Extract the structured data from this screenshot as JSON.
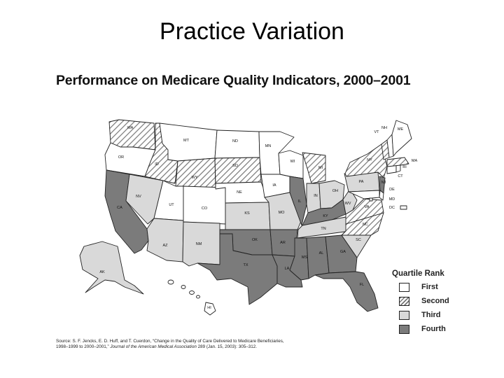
{
  "slide": {
    "title": "Practice Variation"
  },
  "map": {
    "title": "Performance on Medicare Quality Indicators, 2000–2001",
    "colors": {
      "first": "#ffffff",
      "second": "hatched",
      "third": "#d9d9d9",
      "fourth": "#7b7b7b"
    },
    "states": [
      {
        "abbr": "WA",
        "quartile": "second"
      },
      {
        "abbr": "OR",
        "quartile": "first"
      },
      {
        "abbr": "CA",
        "quartile": "fourth"
      },
      {
        "abbr": "ID",
        "quartile": "second"
      },
      {
        "abbr": "NV",
        "quartile": "third"
      },
      {
        "abbr": "MT",
        "quartile": "first"
      },
      {
        "abbr": "WY",
        "quartile": "second"
      },
      {
        "abbr": "UT",
        "quartile": "first"
      },
      {
        "abbr": "AZ",
        "quartile": "third"
      },
      {
        "abbr": "CO",
        "quartile": "first"
      },
      {
        "abbr": "NM",
        "quartile": "third"
      },
      {
        "abbr": "ND",
        "quartile": "first"
      },
      {
        "abbr": "SD",
        "quartile": "second"
      },
      {
        "abbr": "NE",
        "quartile": "first"
      },
      {
        "abbr": "KS",
        "quartile": "third"
      },
      {
        "abbr": "OK",
        "quartile": "fourth"
      },
      {
        "abbr": "TX",
        "quartile": "fourth"
      },
      {
        "abbr": "MN",
        "quartile": "first"
      },
      {
        "abbr": "IA",
        "quartile": "first"
      },
      {
        "abbr": "MO",
        "quartile": "third"
      },
      {
        "abbr": "AR",
        "quartile": "fourth"
      },
      {
        "abbr": "LA",
        "quartile": "fourth"
      },
      {
        "abbr": "WI",
        "quartile": "first"
      },
      {
        "abbr": "IL",
        "quartile": "fourth"
      },
      {
        "abbr": "MI",
        "quartile": "second"
      },
      {
        "abbr": "IN",
        "quartile": "third"
      },
      {
        "abbr": "OH",
        "quartile": "third"
      },
      {
        "abbr": "KY",
        "quartile": "fourth"
      },
      {
        "abbr": "TN",
        "quartile": "third"
      },
      {
        "abbr": "MS",
        "quartile": "fourth"
      },
      {
        "abbr": "AL",
        "quartile": "fourth"
      },
      {
        "abbr": "GA",
        "quartile": "fourth"
      },
      {
        "abbr": "FL",
        "quartile": "fourth"
      },
      {
        "abbr": "SC",
        "quartile": "third"
      },
      {
        "abbr": "NC",
        "quartile": "second"
      },
      {
        "abbr": "VA",
        "quartile": "second"
      },
      {
        "abbr": "WV",
        "quartile": "third"
      },
      {
        "abbr": "PA",
        "quartile": "third"
      },
      {
        "abbr": "NY",
        "quartile": "second"
      },
      {
        "abbr": "NJ",
        "quartile": "fourth"
      },
      {
        "abbr": "DE",
        "quartile": "first"
      },
      {
        "abbr": "MD",
        "quartile": "first"
      },
      {
        "abbr": "DC",
        "quartile": "first"
      },
      {
        "abbr": "CT",
        "quartile": "first"
      },
      {
        "abbr": "RI",
        "quartile": "first"
      },
      {
        "abbr": "MA",
        "quartile": "second"
      },
      {
        "abbr": "VT",
        "quartile": "second"
      },
      {
        "abbr": "NH",
        "quartile": "first"
      },
      {
        "abbr": "ME",
        "quartile": "first"
      },
      {
        "abbr": "AK",
        "quartile": "third"
      },
      {
        "abbr": "HI",
        "quartile": "first"
      }
    ],
    "legend": {
      "title": "Quartile Rank",
      "items": [
        {
          "label": "First",
          "quartile": "first"
        },
        {
          "label": "Second",
          "quartile": "second"
        },
        {
          "label": "Third",
          "quartile": "third"
        },
        {
          "label": "Fourth",
          "quartile": "fourth"
        }
      ]
    },
    "source": {
      "prefix": "Source: S. F. Jencks, E. D. Huff, and T. Cuerdon, “Change in the Quality of Care Delivered to Medicare Beneficiaries, 1998–1999 to 2000–2001,”",
      "journal": "Journal of the American Medical Association",
      "suffix": "289 (Jan. 15, 2003): 305–312."
    }
  }
}
